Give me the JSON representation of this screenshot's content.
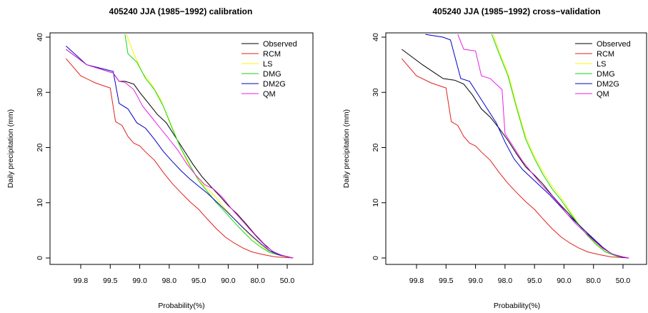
{
  "chart_data": [
    {
      "type": "line",
      "title": "405240 JJA (1985−1992) calibration",
      "xlabel": "Probability(%)",
      "ylabel": "Daily precipitation (mm)",
      "x_ticks": [
        "99.8",
        "99.5",
        "99.0",
        "98.0",
        "95.0",
        "90.0",
        "80.0",
        "50.0"
      ],
      "y_ticks": [
        "0",
        "10",
        "20",
        "30",
        "40"
      ],
      "ylim": [
        0,
        40
      ],
      "legend_position": "top-right",
      "series": [
        {
          "name": "Observed",
          "color": "#000000",
          "points": [
            [
              0.5,
              37.8
            ],
            [
              1.2,
              35
            ],
            [
              2.1,
              33.5
            ],
            [
              2.3,
              32
            ],
            [
              2.5,
              32
            ],
            [
              2.8,
              31.5
            ],
            [
              3,
              30
            ],
            [
              3.3,
              28
            ],
            [
              3.6,
              26
            ],
            [
              3.9,
              24.5
            ],
            [
              4.2,
              22
            ],
            [
              4.5,
              19.5
            ],
            [
              4.8,
              17
            ],
            [
              5.1,
              14.8
            ],
            [
              5.4,
              13
            ],
            [
              5.7,
              11.3
            ],
            [
              6,
              9.5
            ],
            [
              6.3,
              8
            ],
            [
              6.6,
              6.2
            ],
            [
              6.9,
              4.3
            ],
            [
              7.2,
              2.6
            ],
            [
              7.5,
              1.2
            ],
            [
              7.8,
              0.5
            ],
            [
              8.2,
              0
            ]
          ]
        },
        {
          "name": "RCM",
          "color": "#e0211b",
          "points": [
            [
              0.5,
              36.1
            ],
            [
              1,
              33
            ],
            [
              1.5,
              31.7
            ],
            [
              2,
              30.8
            ],
            [
              2.18,
              24.7
            ],
            [
              2.4,
              24
            ],
            [
              2.6,
              22
            ],
            [
              2.8,
              20.8
            ],
            [
              3,
              20.3
            ],
            [
              3.2,
              19.2
            ],
            [
              3.5,
              17.7
            ],
            [
              3.8,
              15.5
            ],
            [
              4.1,
              13.5
            ],
            [
              4.4,
              11.8
            ],
            [
              4.7,
              10.2
            ],
            [
              5,
              8.8
            ],
            [
              5.3,
              7
            ],
            [
              5.6,
              5.3
            ],
            [
              5.9,
              3.8
            ],
            [
              6.2,
              2.7
            ],
            [
              6.5,
              1.8
            ],
            [
              6.8,
              1.1
            ],
            [
              7.2,
              0.6
            ],
            [
              7.6,
              0.2
            ],
            [
              8.2,
              0
            ]
          ]
        },
        {
          "name": "LS",
          "color": "#f7f700",
          "points": [
            [
              2.55,
              40.5
            ],
            [
              2.8,
              37
            ],
            [
              3.1,
              33.5
            ],
            [
              3.4,
              31.5
            ],
            [
              3.7,
              28.8
            ],
            [
              4,
              25
            ],
            [
              4.3,
              21
            ],
            [
              4.6,
              17.5
            ],
            [
              4.9,
              15
            ],
            [
              5.2,
              13
            ],
            [
              5.5,
              11.5
            ],
            [
              5.8,
              9.5
            ],
            [
              6.1,
              7.7
            ],
            [
              6.4,
              6
            ],
            [
              6.7,
              4.3
            ],
            [
              7,
              2.8
            ],
            [
              7.3,
              1.5
            ],
            [
              7.6,
              0.7
            ],
            [
              8,
              0.2
            ],
            [
              8.2,
              0
            ]
          ]
        },
        {
          "name": "DMG",
          "color": "#16d716",
          "points": [
            [
              2.5,
              40.5
            ],
            [
              2.6,
              37
            ],
            [
              2.9,
              35.5
            ],
            [
              3.2,
              32.5
            ],
            [
              3.5,
              30.5
            ],
            [
              3.8,
              27.5
            ],
            [
              4.1,
              23.5
            ],
            [
              4.4,
              19.8
            ],
            [
              4.7,
              16.8
            ],
            [
              5,
              14
            ],
            [
              5.3,
              12
            ],
            [
              5.6,
              10
            ],
            [
              5.9,
              8.3
            ],
            [
              6.2,
              6.5
            ],
            [
              6.5,
              4.8
            ],
            [
              6.8,
              3.2
            ],
            [
              7.1,
              2
            ],
            [
              7.4,
              1
            ],
            [
              7.8,
              0.4
            ],
            [
              8.2,
              0
            ]
          ]
        },
        {
          "name": "DM2G",
          "color": "#0000c8",
          "points": [
            [
              0.5,
              38.4
            ],
            [
              1.2,
              35
            ],
            [
              2.1,
              33.8
            ],
            [
              2.3,
              28
            ],
            [
              2.6,
              27
            ],
            [
              2.9,
              24.5
            ],
            [
              3.2,
              23.5
            ],
            [
              3.5,
              21.5
            ],
            [
              3.8,
              19.3
            ],
            [
              4.1,
              17.5
            ],
            [
              4.4,
              15.8
            ],
            [
              4.7,
              14.3
            ],
            [
              5,
              13
            ],
            [
              5.3,
              11.7
            ],
            [
              5.6,
              10.2
            ],
            [
              5.9,
              8.7
            ],
            [
              6.2,
              7.1
            ],
            [
              6.5,
              5.5
            ],
            [
              6.8,
              4
            ],
            [
              7.1,
              2.6
            ],
            [
              7.4,
              1.3
            ],
            [
              7.7,
              0.6
            ],
            [
              8.1,
              0.1
            ],
            [
              8.2,
              0
            ]
          ]
        },
        {
          "name": "QM",
          "color": "#e81ee8",
          "points": [
            [
              0.5,
              37.8
            ],
            [
              1.2,
              35
            ],
            [
              2.1,
              33.5
            ],
            [
              2.3,
              32
            ],
            [
              2.5,
              31.8
            ],
            [
              2.8,
              30.5
            ],
            [
              3.1,
              27.5
            ],
            [
              3.4,
              25.5
            ],
            [
              3.7,
              23.5
            ],
            [
              4,
              21.5
            ],
            [
              4.3,
              19.5
            ],
            [
              4.6,
              17
            ],
            [
              4.9,
              15
            ],
            [
              5.2,
              13.3
            ],
            [
              5.5,
              12.5
            ],
            [
              5.8,
              11
            ],
            [
              6.1,
              9
            ],
            [
              6.4,
              7.2
            ],
            [
              6.7,
              5.4
            ],
            [
              7,
              3.6
            ],
            [
              7.3,
              2
            ],
            [
              7.6,
              0.9
            ],
            [
              8,
              0.2
            ],
            [
              8.2,
              0
            ]
          ]
        }
      ]
    },
    {
      "type": "line",
      "title": "405240 JJA (1985−1992) cross−validation",
      "xlabel": "Probability(%)",
      "ylabel": "Daily precipitation (mm)",
      "x_ticks": [
        "99.8",
        "99.5",
        "99.0",
        "98.0",
        "95.0",
        "90.0",
        "80.0",
        "50.0"
      ],
      "y_ticks": [
        "0",
        "10",
        "20",
        "30",
        "40"
      ],
      "ylim": [
        0,
        40
      ],
      "legend_position": "top-right",
      "series": [
        {
          "name": "Observed",
          "color": "#000000",
          "points": [
            [
              0.5,
              37.8
            ],
            [
              1.2,
              35
            ],
            [
              1.9,
              32.5
            ],
            [
              2.3,
              32.2
            ],
            [
              2.6,
              31.5
            ],
            [
              2.9,
              29.5
            ],
            [
              3.2,
              27
            ],
            [
              3.5,
              25.5
            ],
            [
              3.8,
              23.5
            ],
            [
              4.1,
              21.3
            ],
            [
              4.4,
              18.8
            ],
            [
              4.7,
              16.5
            ],
            [
              5,
              15
            ],
            [
              5.3,
              13.3
            ],
            [
              5.6,
              11.3
            ],
            [
              5.9,
              9.5
            ],
            [
              6.2,
              7.8
            ],
            [
              6.5,
              6
            ],
            [
              6.8,
              4.3
            ],
            [
              7.1,
              2.8
            ],
            [
              7.4,
              1.5
            ],
            [
              7.7,
              0.5
            ],
            [
              8.2,
              0
            ]
          ]
        },
        {
          "name": "RCM",
          "color": "#e0211b",
          "points": [
            [
              0.5,
              36.1
            ],
            [
              1,
              33
            ],
            [
              1.5,
              31.7
            ],
            [
              2,
              30.8
            ],
            [
              2.18,
              24.7
            ],
            [
              2.4,
              24
            ],
            [
              2.6,
              22
            ],
            [
              2.8,
              20.8
            ],
            [
              3,
              20.3
            ],
            [
              3.2,
              19.2
            ],
            [
              3.5,
              17.7
            ],
            [
              3.8,
              15.5
            ],
            [
              4.1,
              13.5
            ],
            [
              4.4,
              11.8
            ],
            [
              4.7,
              10.2
            ],
            [
              5,
              8.8
            ],
            [
              5.3,
              7
            ],
            [
              5.6,
              5.3
            ],
            [
              5.9,
              3.8
            ],
            [
              6.2,
              2.7
            ],
            [
              6.5,
              1.8
            ],
            [
              6.8,
              1.1
            ],
            [
              7.2,
              0.6
            ],
            [
              7.6,
              0.2
            ],
            [
              8.2,
              0
            ]
          ]
        },
        {
          "name": "LS",
          "color": "#f7f700",
          "points": [
            [
              3.6,
              40.5
            ],
            [
              3.8,
              37.5
            ],
            [
              4.1,
              33.5
            ],
            [
              4.4,
              27.5
            ],
            [
              4.7,
              22
            ],
            [
              5,
              18.5
            ],
            [
              5.3,
              15.5
            ],
            [
              5.6,
              13
            ],
            [
              5.9,
              11
            ],
            [
              6.2,
              8.5
            ],
            [
              6.5,
              6.2
            ],
            [
              6.8,
              4.2
            ],
            [
              7.1,
              2.5
            ],
            [
              7.4,
              1.2
            ],
            [
              7.8,
              0.4
            ],
            [
              8.2,
              0
            ]
          ]
        },
        {
          "name": "DMG",
          "color": "#16d716",
          "points": [
            [
              3.55,
              40.5
            ],
            [
              3.8,
              37
            ],
            [
              4.1,
              33
            ],
            [
              4.4,
              27
            ],
            [
              4.7,
              21.5
            ],
            [
              5,
              18
            ],
            [
              5.3,
              15
            ],
            [
              5.6,
              12.5
            ],
            [
              5.9,
              10.5
            ],
            [
              6.2,
              8.2
            ],
            [
              6.5,
              6
            ],
            [
              6.8,
              4
            ],
            [
              7.1,
              2.4
            ],
            [
              7.4,
              1.1
            ],
            [
              7.8,
              0.3
            ],
            [
              8.2,
              0
            ]
          ]
        },
        {
          "name": "DM2G",
          "color": "#0000c8",
          "points": [
            [
              1.3,
              40.5
            ],
            [
              1.9,
              40
            ],
            [
              2.15,
              39.5
            ],
            [
              2.5,
              32.5
            ],
            [
              2.8,
              32
            ],
            [
              3.1,
              29.5
            ],
            [
              3.4,
              27
            ],
            [
              3.7,
              24.5
            ],
            [
              4,
              21
            ],
            [
              4.3,
              18
            ],
            [
              4.6,
              16
            ],
            [
              4.9,
              14.5
            ],
            [
              5.2,
              13
            ],
            [
              5.5,
              11.5
            ],
            [
              5.8,
              9.8
            ],
            [
              6.1,
              8
            ],
            [
              6.4,
              6.5
            ],
            [
              6.7,
              5
            ],
            [
              7,
              3.5
            ],
            [
              7.3,
              2
            ],
            [
              7.6,
              0.8
            ],
            [
              8,
              0.1
            ],
            [
              8.2,
              0
            ]
          ]
        },
        {
          "name": "QM",
          "color": "#e81ee8",
          "points": [
            [
              2.4,
              40.5
            ],
            [
              2.6,
              37.8
            ],
            [
              3,
              37.5
            ],
            [
              3.2,
              33
            ],
            [
              3.5,
              32.5
            ],
            [
              3.7,
              31.5
            ],
            [
              3.9,
              30.5
            ],
            [
              4,
              22.5
            ],
            [
              4.3,
              20
            ],
            [
              4.6,
              17.5
            ],
            [
              4.9,
              15.5
            ],
            [
              5.2,
              13.5
            ],
            [
              5.5,
              11.8
            ],
            [
              5.8,
              10
            ],
            [
              6.1,
              8
            ],
            [
              6.4,
              6.2
            ],
            [
              6.7,
              4.7
            ],
            [
              7,
              3.2
            ],
            [
              7.3,
              1.8
            ],
            [
              7.6,
              0.8
            ],
            [
              8,
              0.2
            ],
            [
              8.2,
              0
            ]
          ]
        }
      ]
    }
  ]
}
